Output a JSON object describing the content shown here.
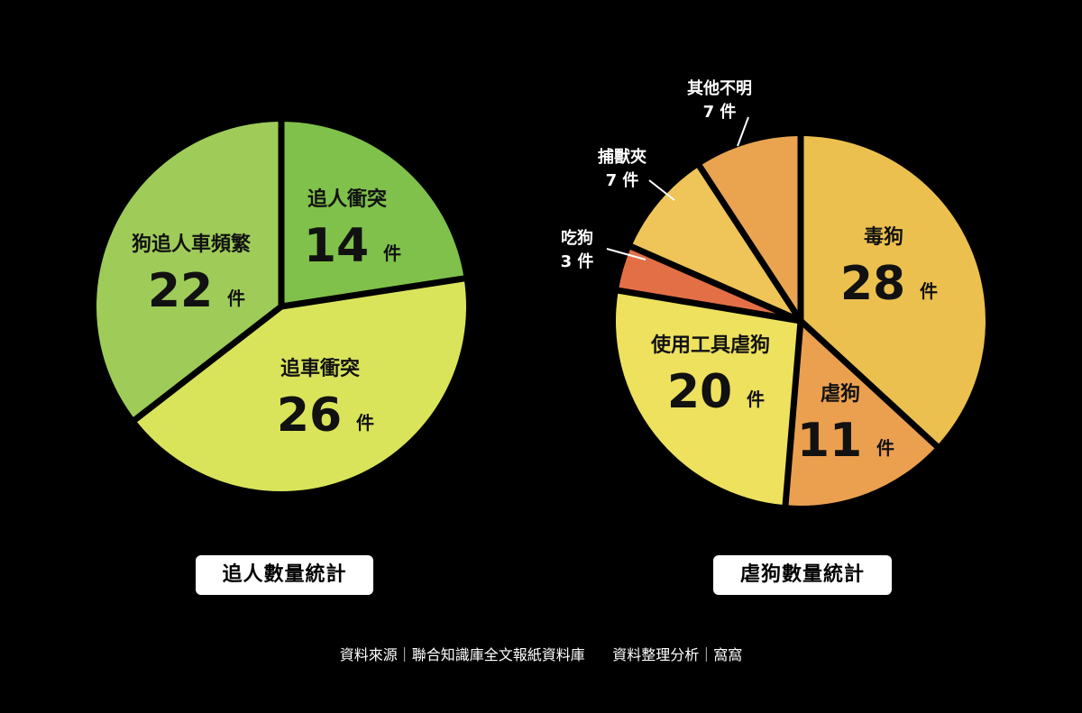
{
  "chart_data": [
    {
      "type": "pie",
      "title": "追人數量統計",
      "unit": "件",
      "slices": [
        {
          "label": "追人衝突",
          "value": 14,
          "color": "#7fc14a"
        },
        {
          "label": "追車衝突",
          "value": 26,
          "color": "#d9e45a"
        },
        {
          "label": "狗追人車頻繁",
          "value": 22,
          "color": "#9fcc59"
        }
      ]
    },
    {
      "type": "pie",
      "title": "虐狗數量統計",
      "unit": "件",
      "slices": [
        {
          "label": "毒狗",
          "value": 28,
          "color": "#ecc04f"
        },
        {
          "label": "虐狗",
          "value": 11,
          "color": "#eba050"
        },
        {
          "label": "使用工具虐狗",
          "value": 20,
          "color": "#ede15e"
        },
        {
          "label": "吃狗",
          "value": 3,
          "color": "#e36f47"
        },
        {
          "label": "捕獸夾",
          "value": 7,
          "color": "#efc458"
        },
        {
          "label": "其他不明",
          "value": 7,
          "color": "#eaa450"
        }
      ]
    }
  ],
  "source": {
    "data_source": "資料來源｜聯合知識庫全文報紙資料庫",
    "analysis": "資料整理分析｜窩窩"
  }
}
